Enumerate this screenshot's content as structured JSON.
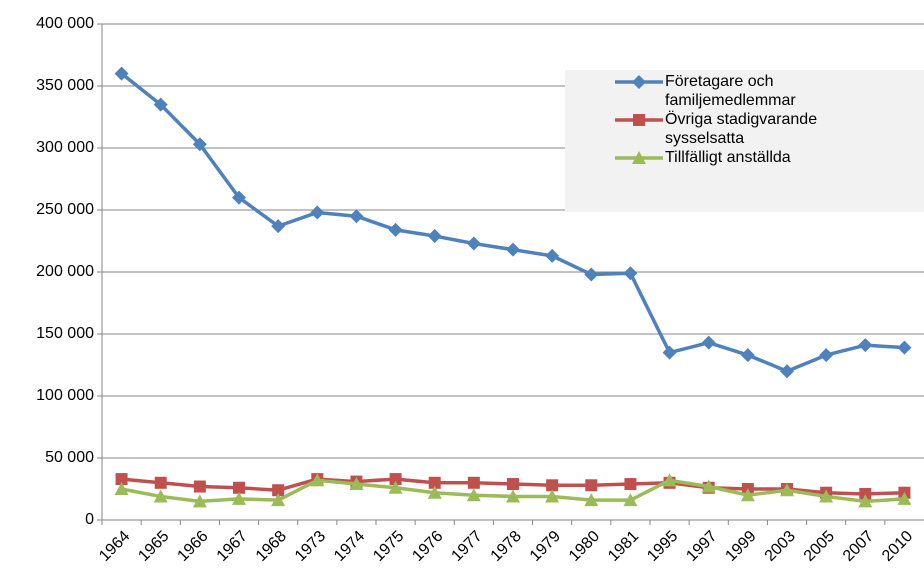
{
  "chart_data": {
    "type": "line",
    "categories": [
      "1964",
      "1965",
      "1966",
      "1967",
      "1968",
      "1973",
      "1974",
      "1975",
      "1976",
      "1977",
      "1978",
      "1979",
      "1980",
      "1981",
      "1995",
      "1997",
      "1999",
      "2003",
      "2005",
      "2007",
      "2010"
    ],
    "series": [
      {
        "name": "Företagare och familjemedlemmar",
        "color": "#4f81bd",
        "marker": "diamond",
        "values": [
          360000,
          335000,
          303000,
          260000,
          237000,
          248000,
          245000,
          234000,
          229000,
          223000,
          218000,
          213000,
          198000,
          199000,
          135000,
          143000,
          133000,
          120000,
          133000,
          141000,
          139000
        ]
      },
      {
        "name": "Övriga stadigvarande sysselsatta",
        "color": "#c0504d",
        "marker": "square",
        "values": [
          33000,
          30000,
          27000,
          26000,
          24000,
          33000,
          31000,
          33000,
          30000,
          30000,
          29000,
          28000,
          28000,
          29000,
          30000,
          26000,
          25000,
          25000,
          22000,
          21000,
          22000
        ]
      },
      {
        "name": "Tillfälligt anställda",
        "color": "#9bbb59",
        "marker": "triangle",
        "values": [
          25000,
          19000,
          15000,
          17000,
          16000,
          32000,
          29000,
          26000,
          22000,
          20000,
          19000,
          19000,
          16000,
          16000,
          32000,
          27000,
          20000,
          24000,
          19000,
          15000,
          17000
        ]
      }
    ],
    "ylim": [
      0,
      400000
    ],
    "yticks": [
      0,
      {
        "value": 50000,
        "label": "50 000"
      },
      {
        "value": 100000,
        "label": "100 000"
      },
      {
        "value": 150000,
        "label": "150 000"
      },
      {
        "value": 200000,
        "label": "200 000"
      },
      {
        "value": 250000,
        "label": "250 000"
      },
      {
        "value": 300000,
        "label": "300 000"
      },
      {
        "value": 350000,
        "label": "350 000"
      },
      {
        "value": 400000,
        "label": "400 000"
      }
    ],
    "grid": true
  }
}
